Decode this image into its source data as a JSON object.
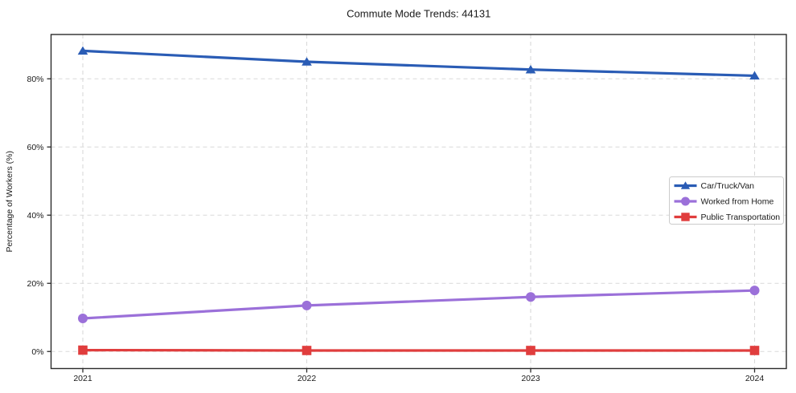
{
  "chart_data": {
    "type": "line",
    "title": "Commute Mode Trends: 44131",
    "xlabel": "",
    "ylabel": "Percentage of Workers (%)",
    "x_tick_labels": [
      "2021",
      "2022",
      "2023",
      "2024"
    ],
    "y_ticks": [
      0,
      20,
      40,
      60,
      80
    ],
    "y_tick_labels": [
      "0%",
      "20%",
      "40%",
      "60%",
      "80%"
    ],
    "ylim": [
      -5,
      93
    ],
    "grid": true,
    "legend_position": "center-right",
    "series": [
      {
        "name": "Car/Truck/Van",
        "marker": "triangle",
        "color": "#2a5cb5",
        "values": [
          88.2,
          85.0,
          82.7,
          80.9
        ]
      },
      {
        "name": "Worked from Home",
        "marker": "circle",
        "color": "#9b70d9",
        "values": [
          9.7,
          13.5,
          16.0,
          17.9
        ]
      },
      {
        "name": "Public Transportation",
        "marker": "square",
        "color": "#e03d3d",
        "values": [
          0.4,
          0.3,
          0.3,
          0.3
        ]
      }
    ],
    "colors": {
      "grid": "#d9d9d9",
      "spine": "#2b2b2b",
      "text": "#1a1a1a",
      "legend_border": "#cccccc",
      "legend_bg": "#ffffff",
      "background": "#ffffff"
    }
  }
}
